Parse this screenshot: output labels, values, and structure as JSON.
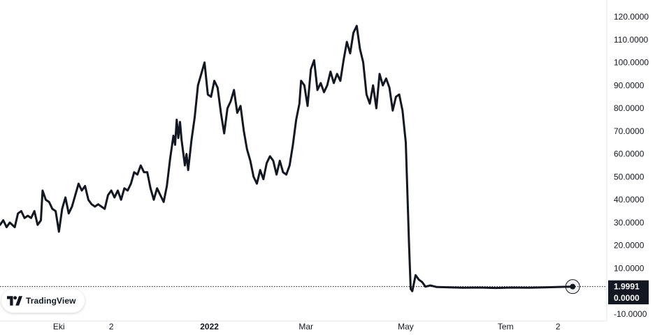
{
  "chart_data": {
    "type": "line",
    "y_ticks": [
      120,
      110,
      100,
      90,
      80,
      70,
      60,
      50,
      40,
      30,
      20,
      10,
      -10
    ],
    "y_tick_labels": [
      "120.0000",
      "110.0000",
      "100.0000",
      "90.0000",
      "80.0000",
      "70.0000",
      "60.0000",
      "50.0000",
      "40.0000",
      "30.0000",
      "20.0000",
      "10.0000",
      "-10.0000"
    ],
    "ylim": [
      -10,
      120
    ],
    "x_ticks": [
      {
        "label": "Eki",
        "date": "2021-10-01",
        "major": false
      },
      {
        "label": "2",
        "date": "2021-11-02",
        "major": false
      },
      {
        "label": "2022",
        "date": "2022-01-01",
        "major": true
      },
      {
        "label": "Mar",
        "date": "2022-03-01",
        "major": false
      },
      {
        "label": "May",
        "date": "2022-05-01",
        "major": false
      },
      {
        "label": "Tem",
        "date": "2022-07-01",
        "major": false
      },
      {
        "label": "2",
        "date": "2022-08-02",
        "major": false
      }
    ],
    "xlim": [
      "2021-08-26",
      "2022-08-25"
    ],
    "series": [
      {
        "color": "#131722",
        "points": [
          [
            "2021-08-26",
            29
          ],
          [
            "2021-08-28",
            31
          ],
          [
            "2021-08-30",
            28
          ],
          [
            "2021-09-01",
            30
          ],
          [
            "2021-09-04",
            28
          ],
          [
            "2021-09-06",
            34
          ],
          [
            "2021-09-08",
            35
          ],
          [
            "2021-09-10",
            32
          ],
          [
            "2021-09-12",
            33
          ],
          [
            "2021-09-14",
            32
          ],
          [
            "2021-09-16",
            35
          ],
          [
            "2021-09-18",
            29
          ],
          [
            "2021-09-20",
            31
          ],
          [
            "2021-09-21",
            44
          ],
          [
            "2021-09-23",
            40
          ],
          [
            "2021-09-25",
            39
          ],
          [
            "2021-09-27",
            36
          ],
          [
            "2021-09-29",
            35
          ],
          [
            "2021-10-01",
            26
          ],
          [
            "2021-10-03",
            36
          ],
          [
            "2021-10-05",
            41
          ],
          [
            "2021-10-07",
            34
          ],
          [
            "2021-10-09",
            37
          ],
          [
            "2021-10-11",
            42
          ],
          [
            "2021-10-13",
            47
          ],
          [
            "2021-10-15",
            44
          ],
          [
            "2021-10-17",
            46
          ],
          [
            "2021-10-19",
            40
          ],
          [
            "2021-10-21",
            38
          ],
          [
            "2021-10-23",
            37
          ],
          [
            "2021-10-25",
            38
          ],
          [
            "2021-10-27",
            37
          ],
          [
            "2021-10-29",
            36
          ],
          [
            "2021-10-31",
            42
          ],
          [
            "2021-11-02",
            44
          ],
          [
            "2021-11-04",
            41
          ],
          [
            "2021-11-06",
            44
          ],
          [
            "2021-11-08",
            40
          ],
          [
            "2021-11-10",
            45
          ],
          [
            "2021-11-12",
            44
          ],
          [
            "2021-11-14",
            47
          ],
          [
            "2021-11-16",
            52
          ],
          [
            "2021-11-18",
            51
          ],
          [
            "2021-11-20",
            55
          ],
          [
            "2021-11-22",
            52
          ],
          [
            "2021-11-24",
            52
          ],
          [
            "2021-11-26",
            45
          ],
          [
            "2021-11-28",
            40
          ],
          [
            "2021-11-30",
            45
          ],
          [
            "2021-12-02",
            42
          ],
          [
            "2021-12-04",
            39
          ],
          [
            "2021-12-06",
            46
          ],
          [
            "2021-12-08",
            58
          ],
          [
            "2021-12-10",
            68
          ],
          [
            "2021-12-11",
            64
          ],
          [
            "2021-12-12",
            75
          ],
          [
            "2021-12-13",
            67
          ],
          [
            "2021-12-14",
            74
          ],
          [
            "2021-12-15",
            66
          ],
          [
            "2021-12-17",
            55
          ],
          [
            "2021-12-18",
            60
          ],
          [
            "2021-12-19",
            53
          ],
          [
            "2021-12-21",
            66
          ],
          [
            "2021-12-23",
            76
          ],
          [
            "2021-12-25",
            90
          ],
          [
            "2021-12-27",
            95
          ],
          [
            "2021-12-29",
            100
          ],
          [
            "2021-12-31",
            86
          ],
          [
            "2022-01-02",
            85
          ],
          [
            "2022-01-04",
            92
          ],
          [
            "2022-01-06",
            89
          ],
          [
            "2022-01-08",
            78
          ],
          [
            "2022-01-10",
            69
          ],
          [
            "2022-01-12",
            80
          ],
          [
            "2022-01-14",
            83
          ],
          [
            "2022-01-16",
            88
          ],
          [
            "2022-01-18",
            78
          ],
          [
            "2022-01-20",
            81
          ],
          [
            "2022-01-22",
            70
          ],
          [
            "2022-01-24",
            62
          ],
          [
            "2022-01-26",
            57
          ],
          [
            "2022-01-28",
            50
          ],
          [
            "2022-01-30",
            47
          ],
          [
            "2022-02-01",
            53
          ],
          [
            "2022-02-03",
            49
          ],
          [
            "2022-02-05",
            56
          ],
          [
            "2022-02-07",
            59
          ],
          [
            "2022-02-09",
            57
          ],
          [
            "2022-02-11",
            51
          ],
          [
            "2022-02-13",
            57
          ],
          [
            "2022-02-15",
            52
          ],
          [
            "2022-02-17",
            51
          ],
          [
            "2022-02-19",
            55
          ],
          [
            "2022-02-21",
            64
          ],
          [
            "2022-02-23",
            75
          ],
          [
            "2022-02-25",
            82
          ],
          [
            "2022-02-26",
            92
          ],
          [
            "2022-02-28",
            90
          ],
          [
            "2022-03-02",
            81
          ],
          [
            "2022-03-04",
            97
          ],
          [
            "2022-03-06",
            101
          ],
          [
            "2022-03-08",
            88
          ],
          [
            "2022-03-10",
            91
          ],
          [
            "2022-03-12",
            87
          ],
          [
            "2022-03-14",
            90
          ],
          [
            "2022-03-16",
            96
          ],
          [
            "2022-03-18",
            91
          ],
          [
            "2022-03-20",
            95
          ],
          [
            "2022-03-22",
            92
          ],
          [
            "2022-03-24",
            101
          ],
          [
            "2022-03-26",
            109
          ],
          [
            "2022-03-28",
            104
          ],
          [
            "2022-03-30",
            113
          ],
          [
            "2022-04-01",
            116
          ],
          [
            "2022-04-03",
            106
          ],
          [
            "2022-04-05",
            100
          ],
          [
            "2022-04-07",
            86
          ],
          [
            "2022-04-09",
            82
          ],
          [
            "2022-04-11",
            90
          ],
          [
            "2022-04-13",
            80
          ],
          [
            "2022-04-15",
            95
          ],
          [
            "2022-04-17",
            90
          ],
          [
            "2022-04-19",
            93
          ],
          [
            "2022-04-21",
            89
          ],
          [
            "2022-04-23",
            79
          ],
          [
            "2022-04-25",
            85
          ],
          [
            "2022-04-27",
            86
          ],
          [
            "2022-04-29",
            79
          ],
          [
            "2022-05-01",
            65
          ],
          [
            "2022-05-03",
            20
          ],
          [
            "2022-05-04",
            1
          ],
          [
            "2022-05-05",
            0
          ],
          [
            "2022-05-07",
            7
          ],
          [
            "2022-05-09",
            5
          ],
          [
            "2022-05-11",
            4
          ],
          [
            "2022-05-13",
            2
          ],
          [
            "2022-05-16",
            2.5
          ],
          [
            "2022-05-20",
            1.8
          ],
          [
            "2022-05-28",
            1.7
          ],
          [
            "2022-06-05",
            1.5
          ],
          [
            "2022-06-15",
            1.6
          ],
          [
            "2022-06-25",
            1.4
          ],
          [
            "2022-07-05",
            1.6
          ],
          [
            "2022-07-15",
            1.5
          ],
          [
            "2022-07-25",
            1.7
          ],
          [
            "2022-08-05",
            1.9
          ],
          [
            "2022-08-11",
            1.9991
          ]
        ]
      }
    ],
    "last_value": 1.9991,
    "last_value_label": "1.9991",
    "zero_label": "0.0000"
  },
  "logo": {
    "text": "TradingView"
  },
  "colors": {
    "line": "#131722",
    "badge": "#131722",
    "grid": "#e0e3eb"
  }
}
